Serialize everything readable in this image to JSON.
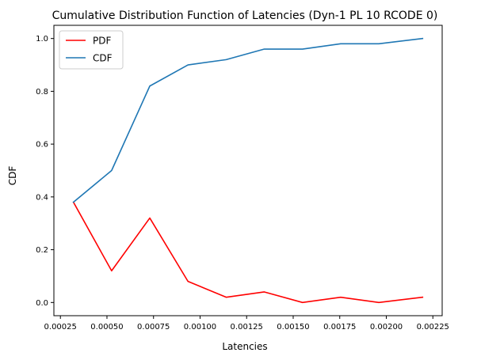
{
  "chart_data": {
    "type": "line",
    "title": "Cumulative Distribution Function of Latencies (Dyn-1 PL 10 RCODE 0)",
    "xlabel": "Latencies",
    "ylabel": "CDF",
    "xlim": [
      0.000215,
      0.0023
    ],
    "ylim": [
      -0.05,
      1.05
    ],
    "grid": false,
    "legend_position": "top-left",
    "x": [
      0.00032,
      0.000525,
      0.00073,
      0.000935,
      0.00114,
      0.001345,
      0.00155,
      0.001755,
      0.00196,
      0.002195
    ],
    "series": [
      {
        "name": "PDF",
        "color": "#ff0000",
        "values": [
          0.38,
          0.12,
          0.32,
          0.08,
          0.02,
          0.04,
          0.0,
          0.02,
          0.0,
          0.02
        ]
      },
      {
        "name": "CDF",
        "color": "#1f77b4",
        "values": [
          0.38,
          0.5,
          0.82,
          0.9,
          0.92,
          0.96,
          0.96,
          0.98,
          0.98,
          1.0
        ]
      }
    ],
    "xticks": [
      {
        "value": 0.00025,
        "label": "0.00025"
      },
      {
        "value": 0.0005,
        "label": "0.00050"
      },
      {
        "value": 0.00075,
        "label": "0.00075"
      },
      {
        "value": 0.001,
        "label": "0.00100"
      },
      {
        "value": 0.00125,
        "label": "0.00125"
      },
      {
        "value": 0.0015,
        "label": "0.00150"
      },
      {
        "value": 0.00175,
        "label": "0.00175"
      },
      {
        "value": 0.002,
        "label": "0.00200"
      },
      {
        "value": 0.00225,
        "label": "0.00225"
      }
    ],
    "yticks": [
      {
        "value": 0.0,
        "label": "0.0"
      },
      {
        "value": 0.2,
        "label": "0.2"
      },
      {
        "value": 0.4,
        "label": "0.4"
      },
      {
        "value": 0.6,
        "label": "0.6"
      },
      {
        "value": 0.8,
        "label": "0.8"
      },
      {
        "value": 1.0,
        "label": "1.0"
      }
    ]
  }
}
